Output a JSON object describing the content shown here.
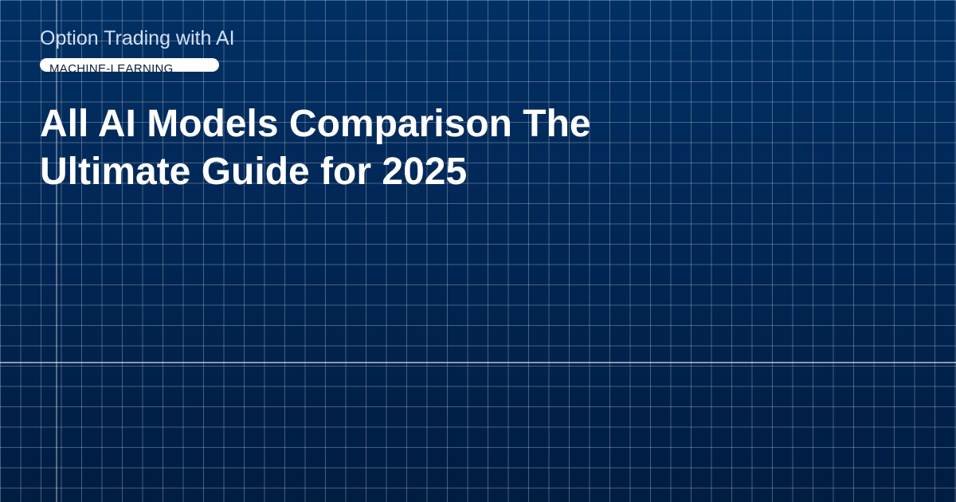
{
  "header": {
    "site_name": "Option Trading with AI",
    "tag": "MACHINE-LEARNING",
    "title": "All AI Models Comparison The Ultimate Guide for 2025"
  }
}
